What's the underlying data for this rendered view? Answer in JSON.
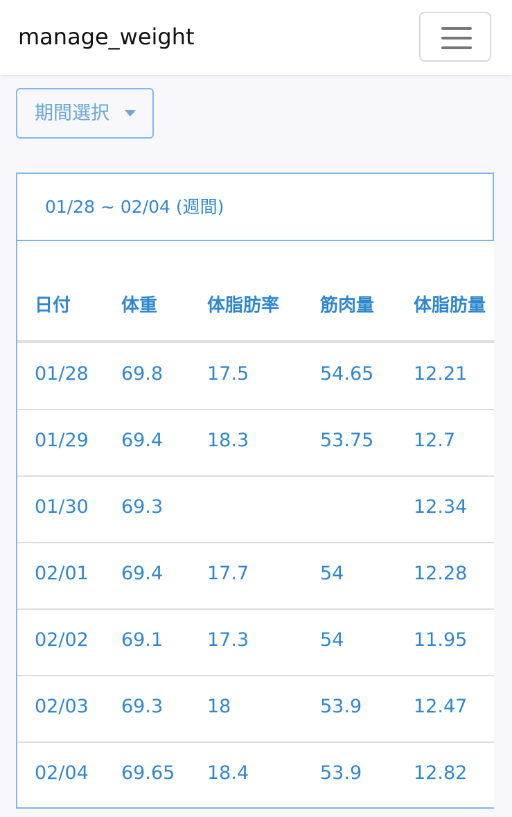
{
  "navbar": {
    "brand": "manage_weight",
    "toggler_icon": "hamburger-menu-icon"
  },
  "period_select": {
    "label": "期間選択",
    "caret_icon": "caret-down-icon"
  },
  "card": {
    "range": "01/28 ~ 02/04 (週間)"
  },
  "table": {
    "headers": [
      "日付",
      "体重",
      "体脂肪率",
      "筋肉量",
      "体脂肪量"
    ],
    "rows": [
      [
        "01/28",
        "69.8",
        "17.5",
        "54.65",
        "12.21"
      ],
      [
        "01/29",
        "69.4",
        "18.3",
        "53.75",
        "12.7"
      ],
      [
        "01/30",
        "69.3",
        "",
        "",
        "12.34"
      ],
      [
        "02/01",
        "69.4",
        "17.7",
        "54",
        "12.28"
      ],
      [
        "02/02",
        "69.1",
        "17.3",
        "54",
        "11.95"
      ],
      [
        "02/03",
        "69.3",
        "18",
        "53.9",
        "12.47"
      ],
      [
        "02/04",
        "69.65",
        "18.4",
        "53.9",
        "12.82"
      ]
    ]
  },
  "colors": {
    "accent": "#2f87cf",
    "border": "#7fb6e3",
    "background": "#f7f7fc"
  }
}
